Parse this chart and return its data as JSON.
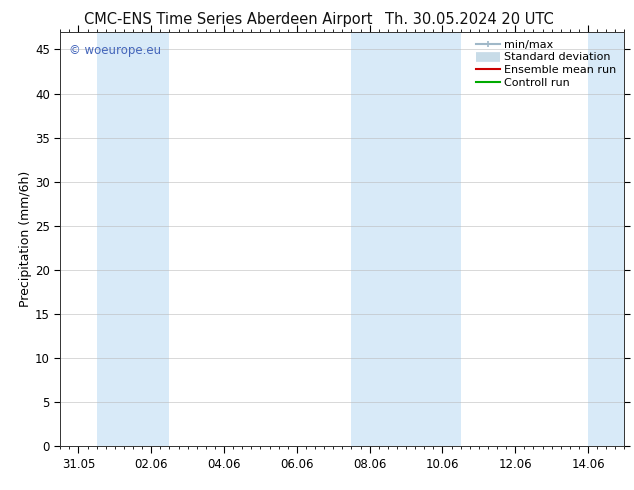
{
  "title_left": "CMC-ENS Time Series Aberdeen Airport",
  "title_right": "Th. 30.05.2024 20 UTC",
  "ylabel": "Precipitation (mm/6h)",
  "watermark": "© woeurope.eu",
  "ylim": [
    0,
    47
  ],
  "yticks": [
    0,
    5,
    10,
    15,
    20,
    25,
    30,
    35,
    40,
    45
  ],
  "xtick_labels": [
    "31.05",
    "02.06",
    "04.06",
    "06.06",
    "08.06",
    "10.06",
    "12.06",
    "14.06"
  ],
  "xtick_positions": [
    0,
    2,
    4,
    6,
    8,
    10,
    12,
    14
  ],
  "shaded_bands": [
    {
      "x_start": 0.5,
      "x_end": 2.5,
      "color": "#d8eaf8"
    },
    {
      "x_start": 7.5,
      "x_end": 10.5,
      "color": "#d8eaf8"
    },
    {
      "x_start": 14.0,
      "x_end": 15.0,
      "color": "#d8eaf8"
    }
  ],
  "xlim": [
    -0.5,
    15.0
  ],
  "bg_color": "#ffffff",
  "plot_bg_color": "#ffffff",
  "grid_color": "#bbbbbb",
  "title_fontsize": 10.5,
  "tick_fontsize": 8.5,
  "ylabel_fontsize": 9,
  "watermark_color": "#4466bb",
  "legend_minmax_color": "#a0b8c8",
  "legend_std_color": "#c8dce8",
  "legend_mean_color": "#cc0000",
  "legend_ctrl_color": "#00aa00"
}
